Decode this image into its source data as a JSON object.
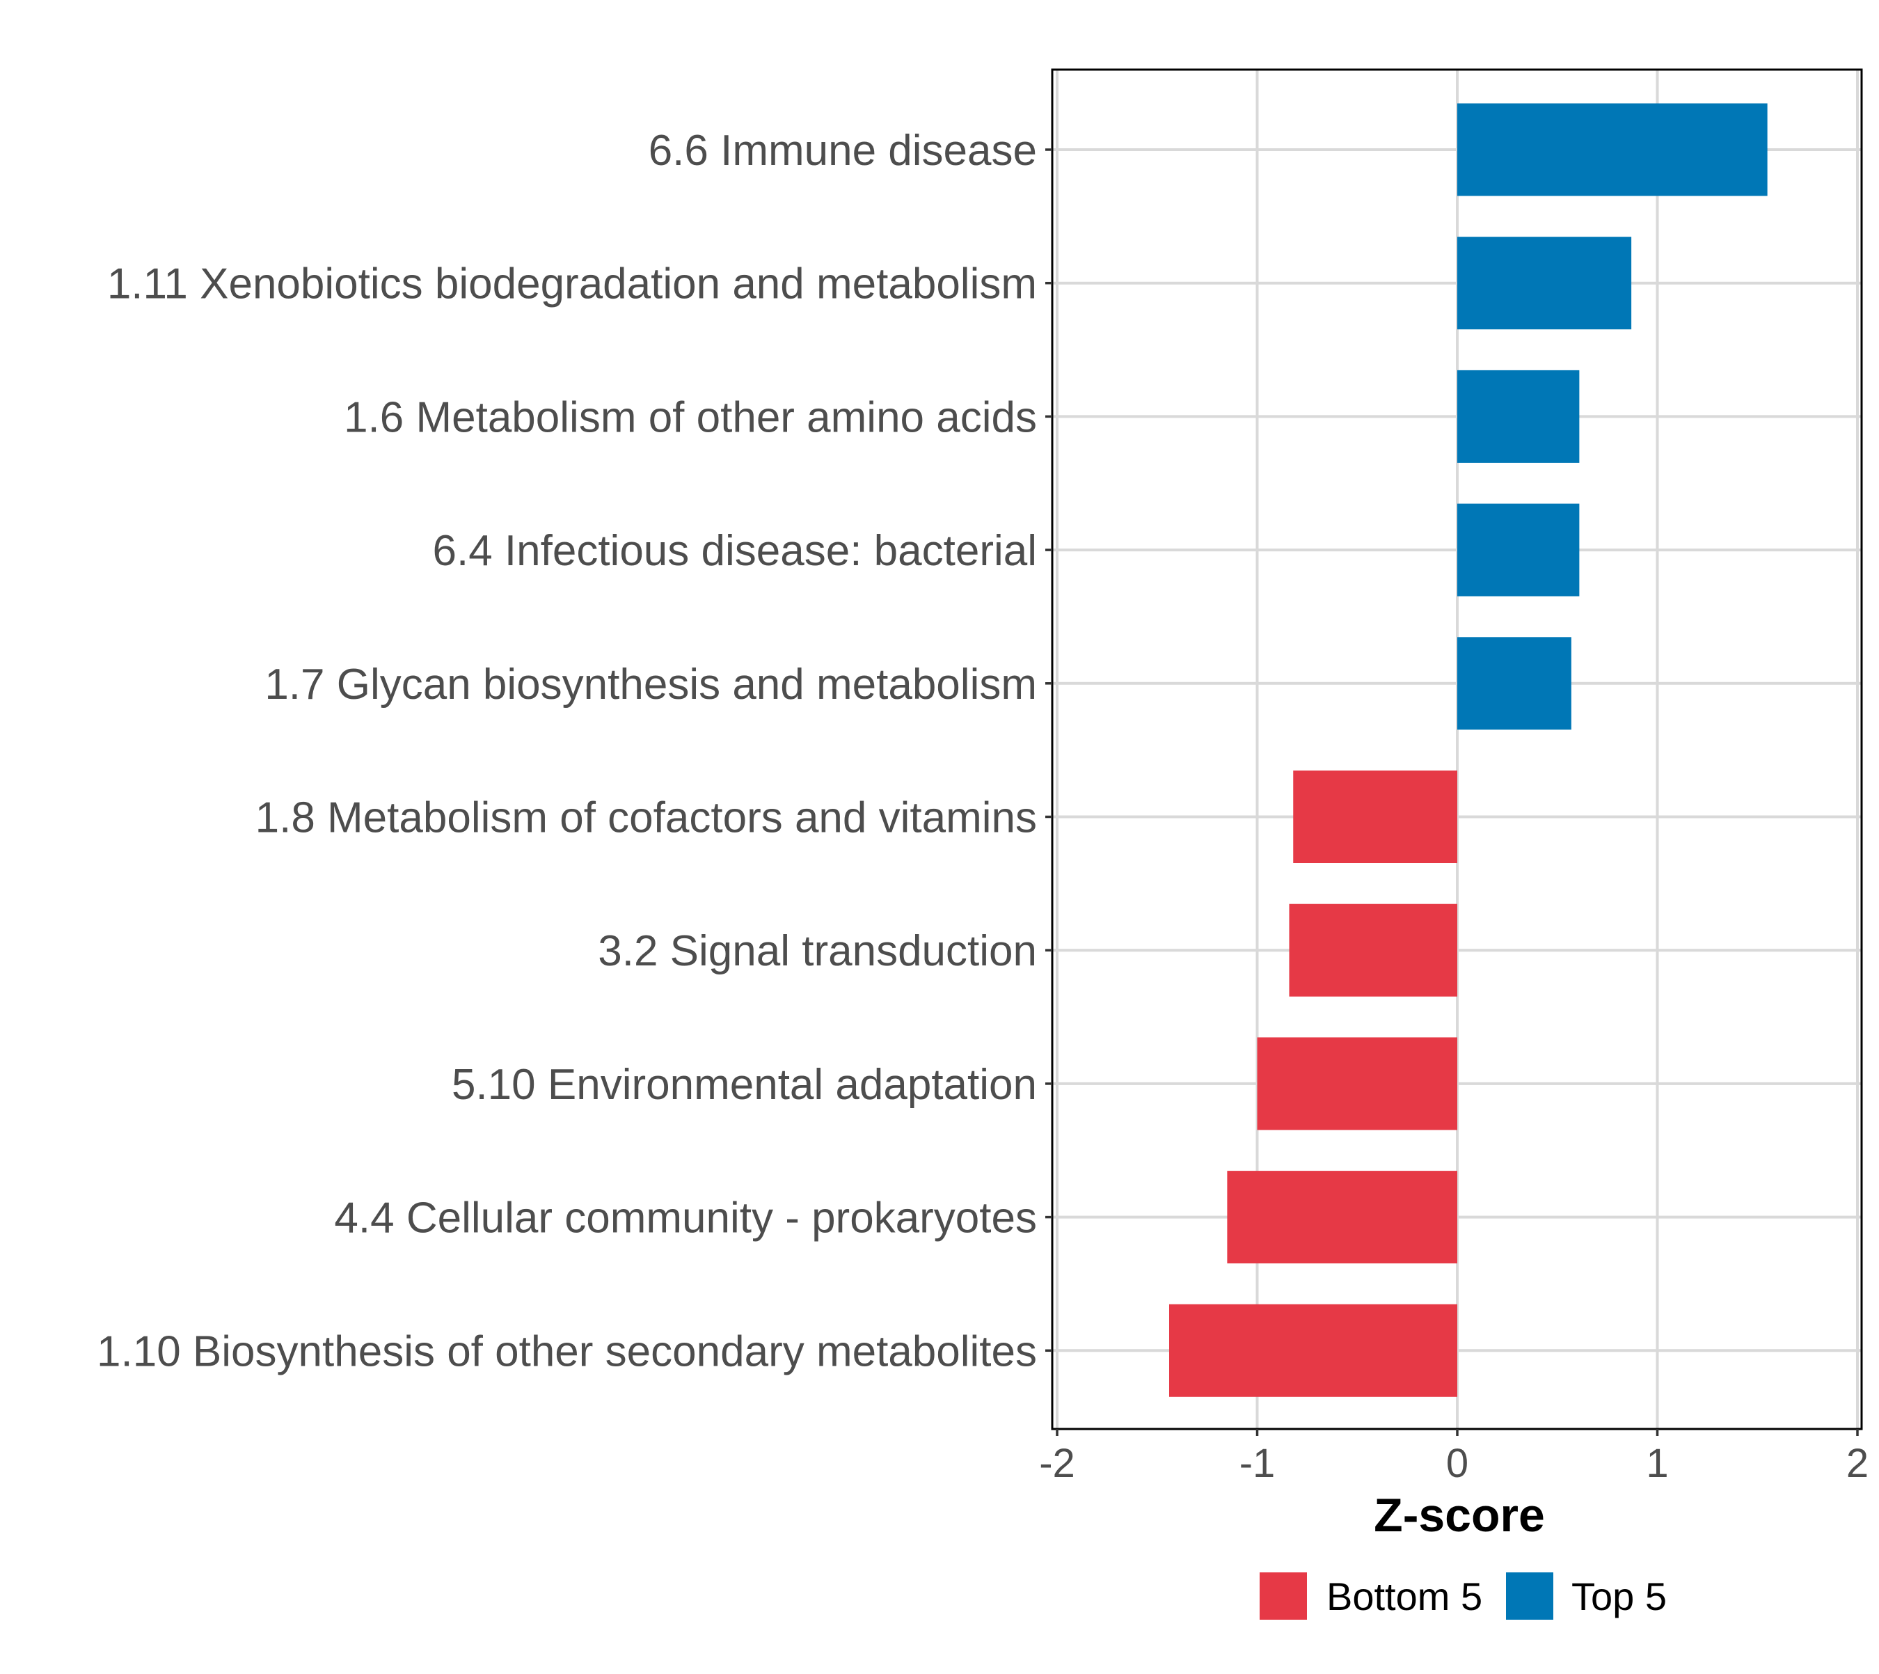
{
  "chart_data": {
    "type": "bar",
    "orientation": "horizontal",
    "title": "",
    "xlabel": "Z-score",
    "ylabel": "",
    "xlim": [
      -2,
      2
    ],
    "xticks": [
      -2,
      -1,
      0,
      1,
      2
    ],
    "xtick_labels": [
      "-2",
      "-1",
      "0",
      "1",
      "2"
    ],
    "grid": true,
    "categories": [
      "6.6 Immune disease",
      "1.11 Xenobiotics biodegradation and metabolism",
      "1.6 Metabolism of other amino acids",
      "6.4 Infectious disease: bacterial",
      "1.7 Glycan biosynthesis and metabolism",
      "1.8 Metabolism of cofactors and vitamins",
      "3.2 Signal transduction",
      "5.10 Environmental adaptation",
      "4.4 Cellular community - prokaryotes",
      "1.10 Biosynthesis of other secondary metabolites"
    ],
    "values": [
      1.55,
      0.87,
      0.61,
      0.61,
      0.57,
      -0.82,
      -0.84,
      -1.0,
      -1.15,
      -1.44
    ],
    "groups": [
      "Top 5",
      "Top 5",
      "Top 5",
      "Top 5",
      "Top 5",
      "Bottom 5",
      "Bottom 5",
      "Bottom 5",
      "Bottom 5",
      "Bottom 5"
    ],
    "legend": {
      "position": "bottom",
      "entries": [
        {
          "label": "Bottom 5",
          "color": "#e63946"
        },
        {
          "label": "Top 5",
          "color": "#0077b6"
        }
      ]
    }
  }
}
